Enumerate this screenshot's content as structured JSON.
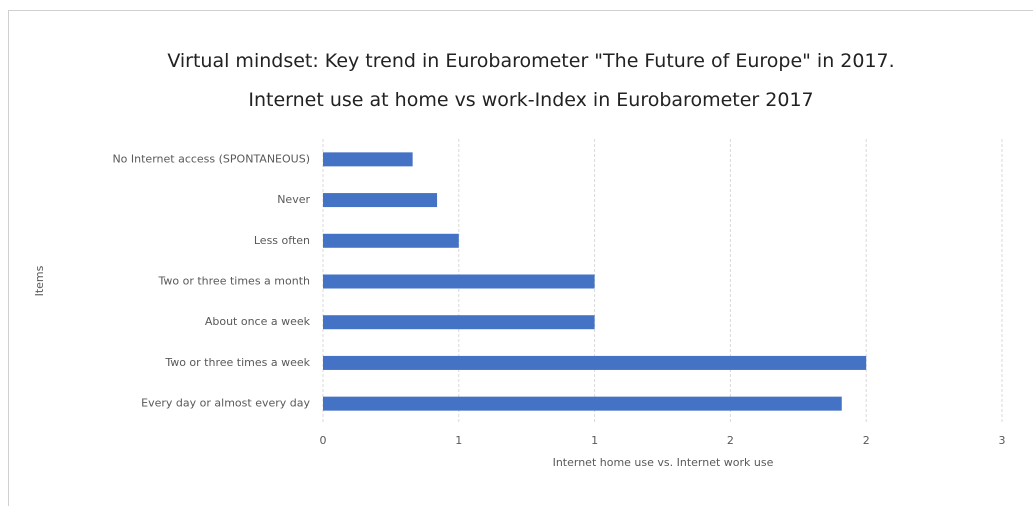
{
  "chart_data": {
    "type": "hbar",
    "title": "Virtual mindset: Key trend in Eurobarometer \"The Future of Europe\" in 2017. Internet use at home vs work-Index in Eurobarometer 2017",
    "x_label": "Internet home use vs. Internet work use",
    "y_label": "Items",
    "categories": [
      "No Internet access (SPONTANEOUS)",
      "Never",
      "Less often",
      "Two or three times a month",
      "About once a week",
      "Two or three times a week",
      "Every day or almost every day"
    ],
    "values": [
      0.33,
      0.42,
      0.5,
      1.0,
      1.0,
      2.0,
      1.91
    ],
    "color": "#4472c4",
    "xlim": [
      0,
      2.5
    ],
    "xticks": [
      0,
      {
        "value": 0.5,
        "label": "1"
      },
      1,
      {
        "value": 1.5,
        "label": "2"
      },
      2,
      {
        "value": 2.5,
        "label": "3"
      }
    ],
    "grid": true
  }
}
